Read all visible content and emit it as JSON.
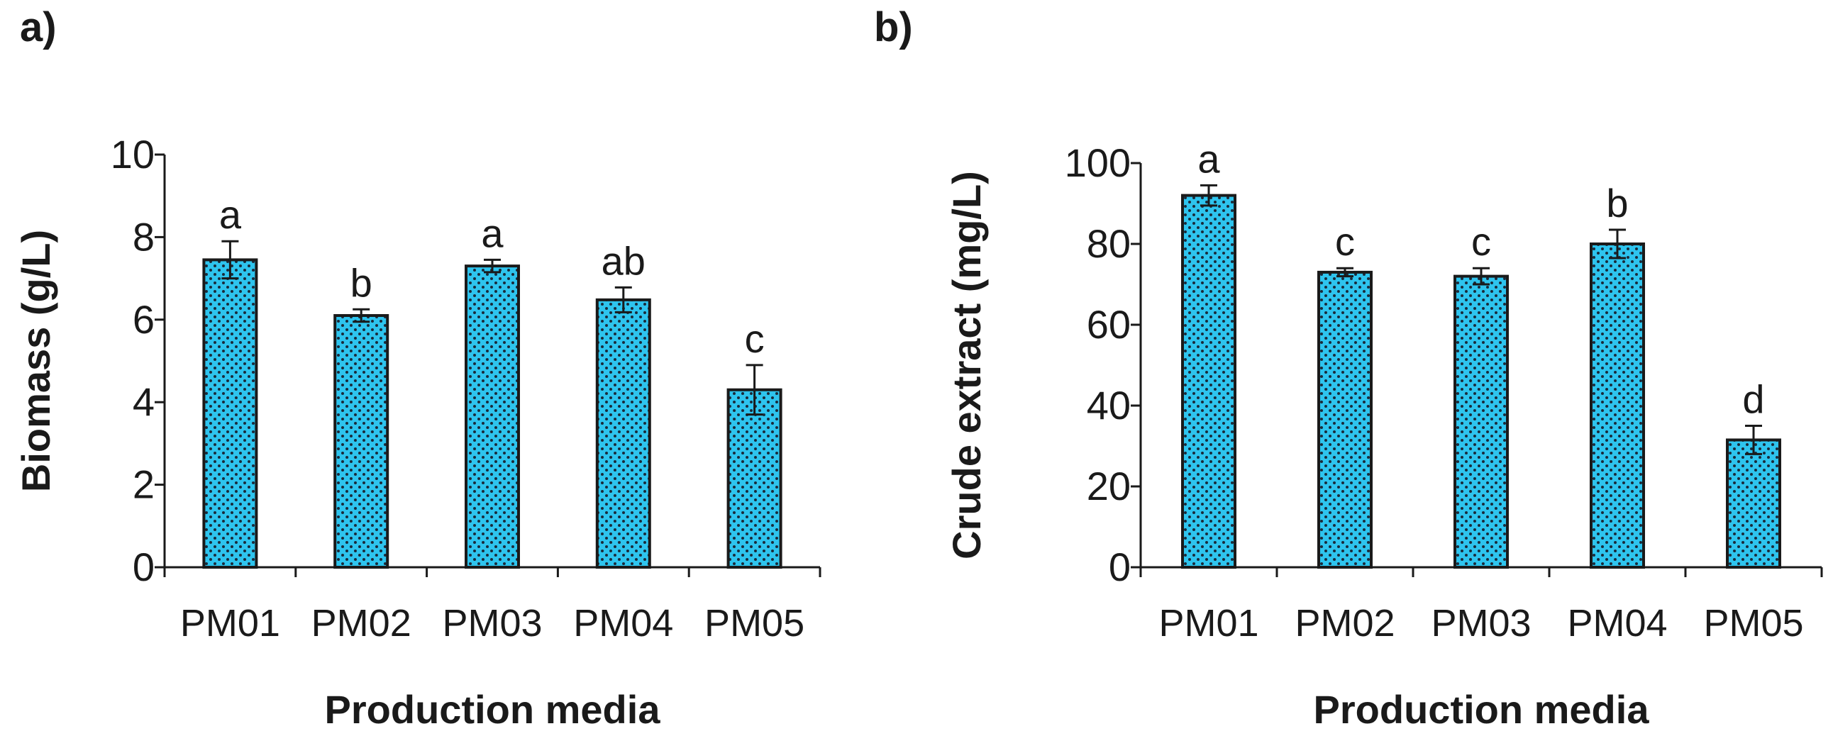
{
  "colors": {
    "bar_fill": "#2ec4ee",
    "bar_dot": "#1a2a3a",
    "axis": "#1a1a1a"
  },
  "chart_data": [
    {
      "panel": "a)",
      "type": "bar",
      "categories": [
        "PM01",
        "PM02",
        "PM03",
        "PM04",
        "PM05"
      ],
      "values": [
        7.45,
        6.1,
        7.3,
        6.48,
        4.3
      ],
      "errors": [
        0.45,
        0.15,
        0.15,
        0.3,
        0.6
      ],
      "significance": [
        "a",
        "b",
        "a",
        "ab",
        "c"
      ],
      "xlabel": "Production media",
      "ylabel": "Biomass (g/L)",
      "ylim": [
        0,
        10
      ],
      "yticks": [
        0,
        2,
        4,
        6,
        8,
        10
      ],
      "grid": false
    },
    {
      "panel": "b)",
      "type": "bar",
      "categories": [
        "PM01",
        "PM02",
        "PM03",
        "PM04",
        "PM05"
      ],
      "values": [
        92,
        73,
        72,
        80,
        31.5
      ],
      "errors": [
        2.5,
        1,
        2,
        3.5,
        3.5
      ],
      "significance": [
        "a",
        "c",
        "c",
        "b",
        "d"
      ],
      "xlabel": "Production media",
      "ylabel": "Crude extract (mg/L)",
      "ylim": [
        0,
        100
      ],
      "yticks": [
        0,
        20,
        40,
        60,
        80,
        100
      ],
      "grid": false
    }
  ]
}
